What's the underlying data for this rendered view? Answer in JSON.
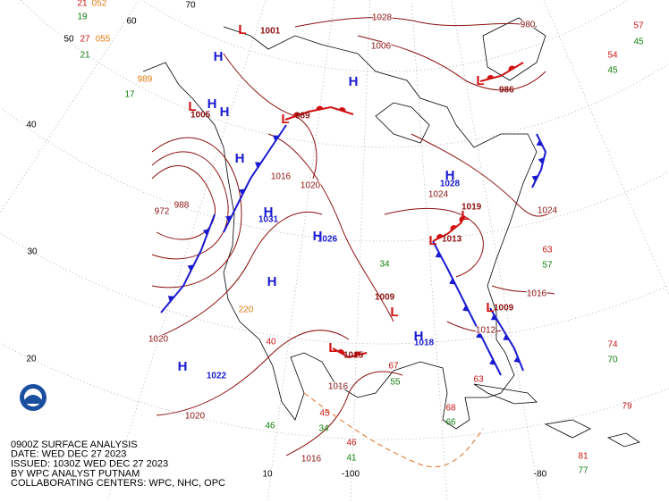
{
  "caption": [
    "0900Z SURFACE ANALYSIS",
    "DATE: WED DEC 27 2023",
    "ISSUED: 1030Z WED DEC 27 2023",
    "BY WPC ANALYST PUTNAM",
    "COLLABORATING CENTERS: WPC, NHC, OPC"
  ],
  "latitude_labels": [
    "60",
    "50",
    "40",
    "30",
    "20"
  ],
  "longitude_labels": [
    "70",
    "-100",
    "-80",
    "10"
  ],
  "high_centers": [
    {
      "symbol": "H",
      "pressure": "1028"
    },
    {
      "symbol": "H",
      "pressure": "1022"
    },
    {
      "symbol": "H",
      "pressure": "1026"
    },
    {
      "symbol": "H",
      "pressure": "1031"
    },
    {
      "symbol": "H",
      "pressure": "1018"
    },
    {
      "symbol": "H"
    },
    {
      "symbol": "H"
    },
    {
      "symbol": "H"
    },
    {
      "symbol": "H"
    },
    {
      "symbol": "H"
    },
    {
      "symbol": "H"
    }
  ],
  "low_centers": [
    {
      "symbol": "L",
      "pressure": "1001"
    },
    {
      "symbol": "L",
      "pressure": "986"
    },
    {
      "symbol": "L",
      "pressure": "989"
    },
    {
      "symbol": "L",
      "pressure": "1019"
    },
    {
      "symbol": "L",
      "pressure": "1013"
    },
    {
      "symbol": "L",
      "pressure": "1009"
    },
    {
      "symbol": "L",
      "pressure": "1009"
    },
    {
      "symbol": "L",
      "pressure": "1015"
    },
    {
      "symbol": "L",
      "pressure": "1005"
    }
  ],
  "isobar_labels": [
    "1006",
    "1028",
    "1024",
    "1016",
    "1020",
    "1020",
    "1016",
    "1016",
    "1012",
    "1020",
    "1016",
    "1024",
    "988",
    "972",
    "980"
  ],
  "temperatures": [
    "21",
    "27",
    "54",
    "57",
    "63",
    "74",
    "79",
    "81",
    "68",
    "63",
    "46",
    "45",
    "67",
    "40"
  ],
  "dewpoints": [
    "19",
    "21",
    "17",
    "45",
    "45",
    "57",
    "55",
    "66",
    "34",
    "41",
    "46",
    "77",
    "70",
    "34"
  ],
  "pressures": [
    "052",
    "055",
    "989",
    "220"
  ]
}
